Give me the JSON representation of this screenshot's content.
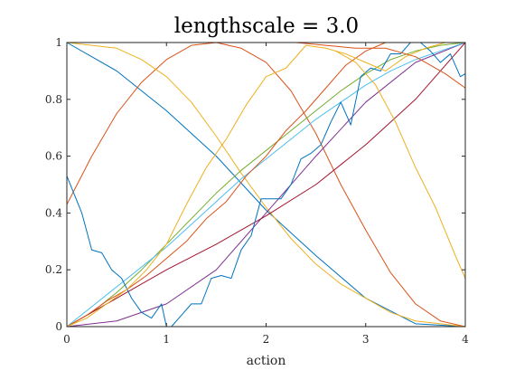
{
  "chart_data": {
    "type": "line",
    "title": "lengthscale = 3.0",
    "xlabel": "action",
    "ylabel": "",
    "xlim": [
      0,
      4
    ],
    "ylim": [
      0,
      1
    ],
    "xticks": [
      0,
      1,
      2,
      3,
      4
    ],
    "yticks": [
      0,
      0.2,
      0.4,
      0.6,
      0.8,
      1
    ],
    "xtick_labels": [
      "0",
      "1",
      "2",
      "3",
      "4"
    ],
    "ytick_labels": [
      "0",
      "0.2",
      "0.4",
      "0.6",
      "0.8",
      "1"
    ],
    "grid": false,
    "legend": "none",
    "series": [
      {
        "color": "#0072BD",
        "x": [
          0,
          0.5,
          1.0,
          1.5,
          2.0,
          2.5,
          3.0,
          3.5,
          4.0
        ],
        "y": [
          1.0,
          0.9,
          0.76,
          0.6,
          0.41,
          0.25,
          0.1,
          0.01,
          0.0
        ]
      },
      {
        "color": "#D95319",
        "x": [
          0,
          0.25,
          0.5,
          0.75,
          1.0,
          1.25,
          1.5,
          1.75,
          2.0,
          2.25,
          2.5,
          2.75,
          3.0,
          3.25,
          3.5,
          3.75,
          4.0
        ],
        "y": [
          0.43,
          0.6,
          0.75,
          0.86,
          0.94,
          0.99,
          1.0,
          0.98,
          0.93,
          0.83,
          0.68,
          0.5,
          0.34,
          0.19,
          0.08,
          0.02,
          0.0
        ]
      },
      {
        "color": "#EDB120",
        "x": [
          0,
          0.25,
          0.5,
          0.75,
          1.0,
          1.25,
          1.5,
          1.75,
          2.0,
          2.25,
          2.5,
          2.75,
          3.0,
          3.25,
          3.5,
          3.75,
          4.0
        ],
        "y": [
          1.0,
          0.99,
          0.98,
          0.94,
          0.88,
          0.79,
          0.67,
          0.54,
          0.42,
          0.31,
          0.22,
          0.15,
          0.1,
          0.05,
          0.02,
          0.01,
          0.0
        ]
      },
      {
        "color": "#7E2F8E",
        "x": [
          0,
          0.5,
          1.0,
          1.5,
          2.0,
          2.5,
          3.0,
          3.5,
          4.0
        ],
        "y": [
          0.0,
          0.02,
          0.08,
          0.2,
          0.4,
          0.6,
          0.79,
          0.93,
          1.0
        ]
      },
      {
        "color": "#77AC30",
        "x": [
          0,
          0.25,
          0.5,
          0.75,
          1.0,
          1.25,
          1.5,
          1.75,
          2.0,
          2.25,
          2.5,
          2.75,
          3.0,
          3.25,
          3.5,
          3.75,
          4.0
        ],
        "y": [
          0.0,
          0.05,
          0.12,
          0.2,
          0.29,
          0.38,
          0.47,
          0.55,
          0.62,
          0.69,
          0.76,
          0.83,
          0.89,
          0.94,
          0.97,
          0.99,
          1.0
        ]
      },
      {
        "color": "#4DBEEE",
        "x": [
          0,
          0.25,
          0.5,
          0.75,
          1.0,
          1.25,
          1.5,
          1.75,
          2.0,
          2.25,
          2.5,
          2.75,
          3.0,
          3.25,
          3.5,
          3.75,
          4.0
        ],
        "y": [
          0.0,
          0.07,
          0.14,
          0.21,
          0.28,
          0.36,
          0.44,
          0.52,
          0.59,
          0.66,
          0.73,
          0.79,
          0.85,
          0.9,
          0.94,
          0.97,
          1.0
        ]
      },
      {
        "color": "#A2142F",
        "x": [
          0,
          0.5,
          1.0,
          1.5,
          2.0,
          2.5,
          3.0,
          3.5,
          4.0
        ],
        "y": [
          0.0,
          0.1,
          0.2,
          0.29,
          0.39,
          0.5,
          0.64,
          0.8,
          1.0
        ]
      },
      {
        "color": "#0072BD",
        "x": [
          0,
          0.15,
          0.25,
          0.35,
          0.45,
          0.55,
          0.65,
          0.75,
          0.85,
          0.95,
          1.0,
          1.05,
          1.15,
          1.25,
          1.35,
          1.45,
          1.55,
          1.65,
          1.75,
          1.85,
          1.95,
          2.05,
          2.15,
          2.25,
          2.35,
          2.45,
          2.55,
          2.65,
          2.75,
          2.85,
          2.95,
          3.05,
          3.15,
          3.25,
          3.35,
          3.45,
          3.55,
          3.65,
          3.75,
          3.85,
          3.95,
          4.0
        ],
        "y": [
          0.53,
          0.4,
          0.27,
          0.26,
          0.2,
          0.17,
          0.1,
          0.05,
          0.03,
          0.08,
          0.0,
          0.0,
          0.04,
          0.08,
          0.08,
          0.17,
          0.18,
          0.17,
          0.27,
          0.32,
          0.45,
          0.45,
          0.45,
          0.5,
          0.59,
          0.61,
          0.64,
          0.72,
          0.79,
          0.71,
          0.88,
          0.91,
          0.9,
          0.96,
          0.96,
          1.0,
          1.0,
          0.97,
          0.93,
          0.96,
          0.88,
          0.89
        ]
      },
      {
        "color": "#D95319",
        "x": [
          0,
          0.2,
          0.4,
          0.6,
          0.8,
          1.0,
          1.2,
          1.4,
          1.6,
          1.8,
          2.0,
          2.2,
          2.4,
          2.6,
          2.8,
          3.0,
          3.2,
          3.4,
          3.6,
          3.8,
          4.0
        ],
        "y": [
          0.0,
          0.04,
          0.09,
          0.13,
          0.18,
          0.24,
          0.3,
          0.38,
          0.44,
          0.53,
          0.6,
          0.69,
          0.76,
          0.84,
          0.92,
          0.97,
          1.0,
          1.0,
          1.0,
          1.0,
          1.0
        ]
      },
      {
        "color": "#EDB120",
        "x": [
          0,
          0.2,
          0.4,
          0.6,
          0.8,
          1.0,
          1.2,
          1.4,
          1.6,
          1.8,
          2.0,
          2.2,
          2.4,
          2.6,
          2.8,
          3.0,
          3.2,
          3.4,
          3.6,
          3.8,
          4.0
        ],
        "y": [
          0.0,
          0.03,
          0.08,
          0.13,
          0.2,
          0.29,
          0.43,
          0.56,
          0.66,
          0.78,
          0.88,
          0.91,
          0.99,
          0.98,
          0.96,
          0.93,
          0.9,
          0.95,
          0.98,
          1.0,
          1.0
        ]
      },
      {
        "color": "#D95319",
        "x": [
          2.3,
          2.6,
          2.9,
          3.2,
          3.5,
          3.8,
          4.0
        ],
        "y": [
          1.0,
          0.99,
          0.98,
          0.98,
          0.95,
          0.89,
          0.84
        ]
      },
      {
        "color": "#EDB120",
        "x": [
          2.7,
          2.9,
          3.1,
          3.3,
          3.5,
          3.7,
          3.9,
          4.0
        ],
        "y": [
          0.97,
          0.93,
          0.85,
          0.72,
          0.56,
          0.42,
          0.25,
          0.17
        ]
      }
    ]
  }
}
